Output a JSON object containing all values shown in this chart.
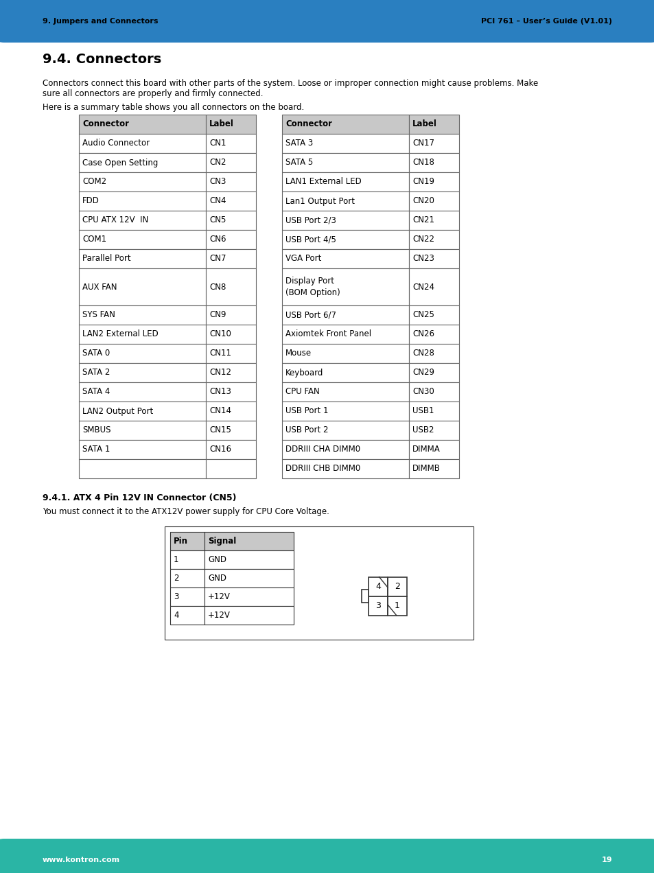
{
  "header_bg_color": "#2a7fc0",
  "footer_bg_color": "#2ab5a5",
  "header_left_text": "9. Jumpers and Connectors",
  "header_right_text": "PCI 761 – User’s Guide (V1.01)",
  "footer_left_text": "www.kontron.com",
  "footer_right_text": "19",
  "section_title": "9.4. Connectors",
  "body_text1a": "Connectors connect this board with other parts of the system. Loose or improper connection might cause problems. Make",
  "body_text1b": "sure all connectors are properly and firmly connected.",
  "body_text2": "Here is a summary table shows you all connectors on the board.",
  "table_header": [
    "Connector",
    "Label",
    "",
    "Connector",
    "Label"
  ],
  "table_rows": [
    [
      "Audio Connector",
      "CN1",
      "",
      "SATA 3",
      "CN17"
    ],
    [
      "Case Open Setting",
      "CN2",
      "",
      "SATA 5",
      "CN18"
    ],
    [
      "COM2",
      "CN3",
      "",
      "LAN1 External LED",
      "CN19"
    ],
    [
      "FDD",
      "CN4",
      "",
      "Lan1 Output Port",
      "CN20"
    ],
    [
      "CPU ATX 12V  IN",
      "CN5",
      "",
      "USB Port 2/3",
      "CN21"
    ],
    [
      "COM1",
      "CN6",
      "",
      "USB Port 4/5",
      "CN22"
    ],
    [
      "Parallel Port",
      "CN7",
      "",
      "VGA Port",
      "CN23"
    ],
    [
      "AUX FAN",
      "CN8",
      "",
      "Display Port\n(BOM Option)",
      "CN24"
    ],
    [
      "SYS FAN",
      "CN9",
      "",
      "USB Port 6/7",
      "CN25"
    ],
    [
      "LAN2 External LED",
      "CN10",
      "",
      "Axiomtek Front Panel",
      "CN26"
    ],
    [
      "SATA 0",
      "CN11",
      "",
      "Mouse",
      "CN28"
    ],
    [
      "SATA 2",
      "CN12",
      "",
      "Keyboard",
      "CN29"
    ],
    [
      "SATA 4",
      "CN13",
      "",
      "CPU FAN",
      "CN30"
    ],
    [
      "LAN2 Output Port",
      "CN14",
      "",
      "USB Port 1",
      "USB1"
    ],
    [
      "SMBUS",
      "CN15",
      "",
      "USB Port 2",
      "USB2"
    ],
    [
      "SATA 1",
      "CN16",
      "",
      "DDRIII CHA DIMM0",
      "DIMMA"
    ],
    [
      "",
      "",
      "",
      "DDRIII CHB DIMM0",
      "DIMMB"
    ]
  ],
  "section2_title": "9.4.1. ATX 4 Pin 12V IN Connector (CN5)",
  "section2_body": "You must connect it to the ATX12V power supply for CPU Core Voltage.",
  "pin_table_header": [
    "Pin",
    "Signal"
  ],
  "pin_table_rows": [
    [
      "1",
      "GND"
    ],
    [
      "2",
      "GND"
    ],
    [
      "3",
      "+12V"
    ],
    [
      "4",
      "+12V"
    ]
  ],
  "table_header_bg": "#c8c8c8",
  "page_bg": "#ffffff",
  "body_font_size": 8.5,
  "table_font_size": 8.5
}
